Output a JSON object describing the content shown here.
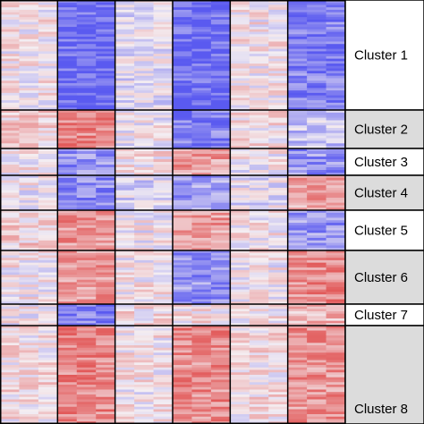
{
  "chart_data": {
    "type": "heatmap",
    "title": "",
    "xlabel": "",
    "ylabel": "",
    "legend": "none",
    "colors": {
      "low": "#5a5af0",
      "mid": "#f4eef2",
      "high": "#e25a5a",
      "grid": "#000000",
      "label_fill_white": "#ffffff",
      "label_fill_gray": "#dcdcdc"
    },
    "column_groups": 6,
    "columns_per_group": 3,
    "value_range": [
      -1,
      1
    ],
    "clusters": [
      {
        "label": "Cluster 1",
        "shaded": false,
        "rows": 45,
        "group_means": [
          0.05,
          -0.9,
          -0.1,
          -0.9,
          0.05,
          -0.75
        ]
      },
      {
        "label": "Cluster 2",
        "shaded": true,
        "rows": 15,
        "group_means": [
          0.2,
          0.7,
          0.0,
          -0.7,
          0.1,
          -0.3
        ]
      },
      {
        "label": "Cluster 3",
        "shaded": false,
        "rows": 10,
        "group_means": [
          0.05,
          -0.6,
          0.1,
          0.55,
          0.0,
          -0.6
        ]
      },
      {
        "label": "Cluster 4",
        "shaded": true,
        "rows": 14,
        "group_means": [
          0.0,
          -0.65,
          -0.2,
          -0.55,
          -0.1,
          0.5
        ]
      },
      {
        "label": "Cluster 5",
        "shaded": false,
        "rows": 16,
        "group_means": [
          0.2,
          0.6,
          0.0,
          0.55,
          0.05,
          -0.6
        ]
      },
      {
        "label": "Cluster 6",
        "shaded": true,
        "rows": 22,
        "group_means": [
          0.05,
          0.55,
          0.05,
          -0.6,
          0.0,
          0.65
        ]
      },
      {
        "label": "Cluster 7",
        "shaded": false,
        "rows": 9,
        "group_means": [
          0.0,
          -0.75,
          0.1,
          0.1,
          0.05,
          0.35
        ]
      },
      {
        "label": "Cluster 8",
        "shaded": true,
        "rows": 40,
        "group_means": [
          0.1,
          0.7,
          0.05,
          0.65,
          0.1,
          0.6
        ]
      }
    ]
  }
}
